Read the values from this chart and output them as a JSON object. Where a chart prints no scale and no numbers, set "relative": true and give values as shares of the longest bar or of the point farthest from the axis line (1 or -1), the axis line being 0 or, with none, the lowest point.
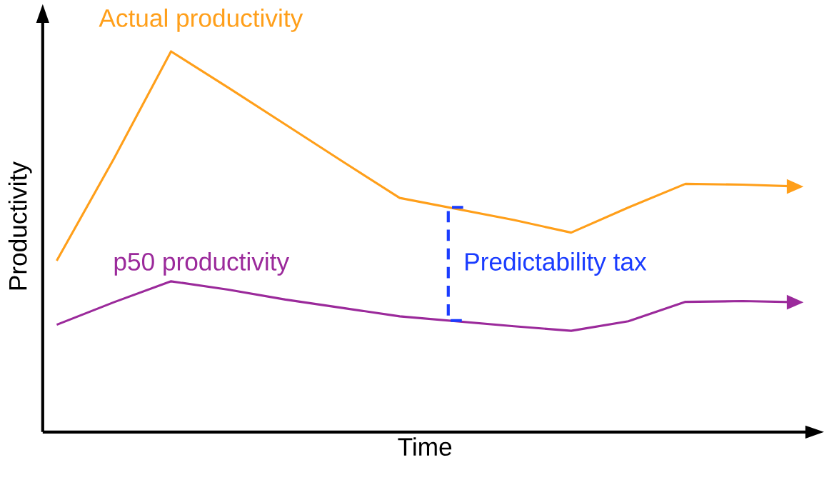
{
  "chart_data": {
    "type": "line",
    "relative": true,
    "xlabel": "Time",
    "ylabel": "Productivity",
    "marker": "none",
    "line_style": "solid",
    "categories": [
      null,
      null,
      null,
      null,
      null,
      null,
      null,
      null,
      null,
      null,
      null,
      null,
      null,
      null
    ],
    "series": [
      {
        "name": "Actual productivity",
        "color": "#ff9f1a",
        "values": [
          0.45,
          0.718,
          1.0,
          0.905,
          0.808,
          0.711,
          0.615,
          0.586,
          0.557,
          0.524,
          0.59,
          0.652,
          0.65,
          0.645
        ]
      },
      {
        "name": "p50 productivity",
        "color": "#9b2a9b",
        "values": [
          0.282,
          0.341,
          0.396,
          0.374,
          0.348,
          0.326,
          0.304,
          0.291,
          0.278,
          0.266,
          0.291,
          0.342,
          0.344,
          0.341
        ]
      }
    ],
    "annotations": [
      "Predictability tax"
    ]
  }
}
